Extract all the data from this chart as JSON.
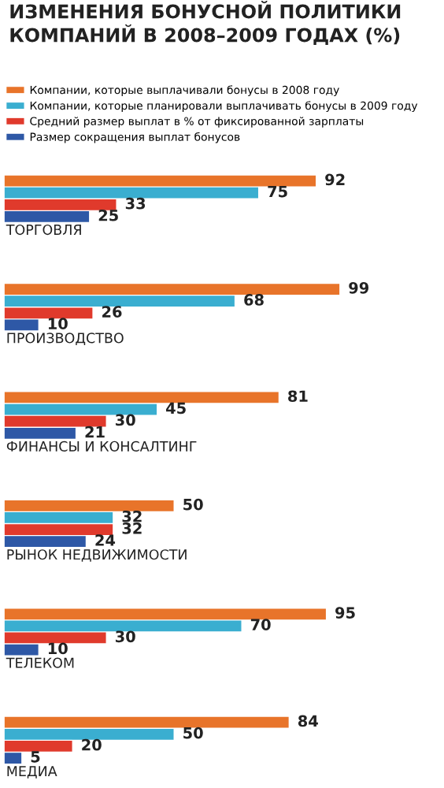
{
  "chart_data": {
    "type": "bar",
    "orientation": "horizontal",
    "title": "ИЗМЕНЕНИЯ БОНУСНОЙ ПОЛИТИКИ КОМПАНИЙ В 2008–2009 ГОДАХ (%)",
    "categories": [
      "ТОРГОВЛЯ",
      "ПРОИЗВОДСТВО",
      "ФИНАНСЫ И КОНСАЛТИНГ",
      "РЫНОК НЕДВИЖИМОСТИ",
      "ТЕЛЕКОМ",
      "МЕДИА"
    ],
    "series": [
      {
        "name": "Компании, которые выплачивали бонусы в 2008 году",
        "color": "#e8742a",
        "values": [
          92,
          99,
          81,
          50,
          95,
          84
        ]
      },
      {
        "name": "Компании, которые планировали выплачивать бонусы в 2009 году",
        "color": "#3aaed0",
        "values": [
          75,
          68,
          45,
          32,
          70,
          50
        ]
      },
      {
        "name": "Средний размер выплат в % от фиксированной зарплаты",
        "color": "#e03a2c",
        "values": [
          33,
          26,
          30,
          32,
          30,
          20
        ]
      },
      {
        "name": "Размер сокращения выплат бонусов",
        "color": "#2e58a6",
        "values": [
          25,
          10,
          21,
          24,
          10,
          5
        ]
      }
    ],
    "data_labels": true,
    "legend": "top"
  }
}
